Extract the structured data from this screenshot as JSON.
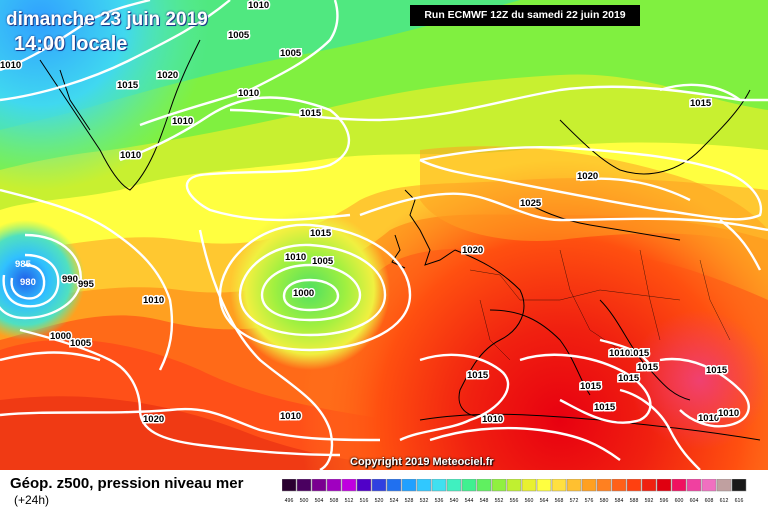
{
  "header": {
    "date_line": "dimanche 23 juin 2019",
    "time_line": "14:00 locale",
    "run_info": "Run ECMWF 12Z du samedi 22 juin 2019"
  },
  "copyright": "Copyright 2019 Meteociel.fr",
  "legend": {
    "title": "Géop. z500, pression niveau mer",
    "subtitle": "(+24h)",
    "scale_labels": [
      "496",
      "500",
      "504",
      "508",
      "512",
      "516",
      "520",
      "524",
      "528",
      "532",
      "536",
      "540",
      "544",
      "548",
      "552",
      "556",
      "560",
      "564",
      "568",
      "572",
      "576",
      "580",
      "584",
      "588",
      "592",
      "596",
      "600",
      "604",
      "608",
      "612",
      "616"
    ],
    "scale_colors": [
      "#2a0030",
      "#4a0060",
      "#7a0090",
      "#a000c0",
      "#c000e0",
      "#5000c8",
      "#3040e0",
      "#2070f0",
      "#20a0ff",
      "#30c8ff",
      "#40e0f0",
      "#40f0c0",
      "#40f090",
      "#60f060",
      "#90f040",
      "#c0f030",
      "#e8f030",
      "#ffff40",
      "#ffe040",
      "#ffc030",
      "#ffa020",
      "#ff8020",
      "#ff6018",
      "#ff4010",
      "#f02010",
      "#e00010",
      "#f01060",
      "#f040a0",
      "#f070c0",
      "#c0a0a0",
      "#181818"
    ]
  },
  "isobars": [
    {
      "v": "1010",
      "id": "i1"
    },
    {
      "v": "1005",
      "id": "i2"
    },
    {
      "v": "1010",
      "id": "i3"
    },
    {
      "v": "1005",
      "id": "i4"
    },
    {
      "v": "1020",
      "id": "i5"
    },
    {
      "v": "1015",
      "id": "i6"
    },
    {
      "v": "1010",
      "id": "i7"
    },
    {
      "v": "1010",
      "id": "i8"
    },
    {
      "v": "1010",
      "id": "i9"
    },
    {
      "v": "1015",
      "id": "i10"
    },
    {
      "v": "1015",
      "id": "i11"
    },
    {
      "v": "1020",
      "id": "i12"
    },
    {
      "v": "1025",
      "id": "i13"
    },
    {
      "v": "1020",
      "id": "i14"
    },
    {
      "v": "1015",
      "id": "i15"
    },
    {
      "v": "1010",
      "id": "i16"
    },
    {
      "v": "1005",
      "id": "i17"
    },
    {
      "v": "1000",
      "id": "i18"
    },
    {
      "v": "985",
      "id": "i19"
    },
    {
      "v": "980",
      "id": "i20"
    },
    {
      "v": "990",
      "id": "i21"
    },
    {
      "v": "995",
      "id": "i22"
    },
    {
      "v": "1010",
      "id": "i23"
    },
    {
      "v": "1000",
      "id": "i24"
    },
    {
      "v": "1005",
      "id": "i25"
    },
    {
      "v": "1015",
      "id": "i26"
    },
    {
      "v": "1015",
      "id": "i27"
    },
    {
      "v": "1015",
      "id": "i28"
    },
    {
      "v": "1015",
      "id": "i29"
    },
    {
      "v": "1015",
      "id": "i30"
    },
    {
      "v": "1020",
      "id": "i31"
    },
    {
      "v": "1010",
      "id": "i32"
    },
    {
      "v": "1010",
      "id": "i33"
    },
    {
      "v": "1010",
      "id": "i34"
    },
    {
      "v": "1015",
      "id": "i35"
    },
    {
      "v": "1010",
      "id": "i36"
    },
    {
      "v": "1010",
      "id": "i37"
    },
    {
      "v": "1015",
      "id": "i38"
    }
  ]
}
